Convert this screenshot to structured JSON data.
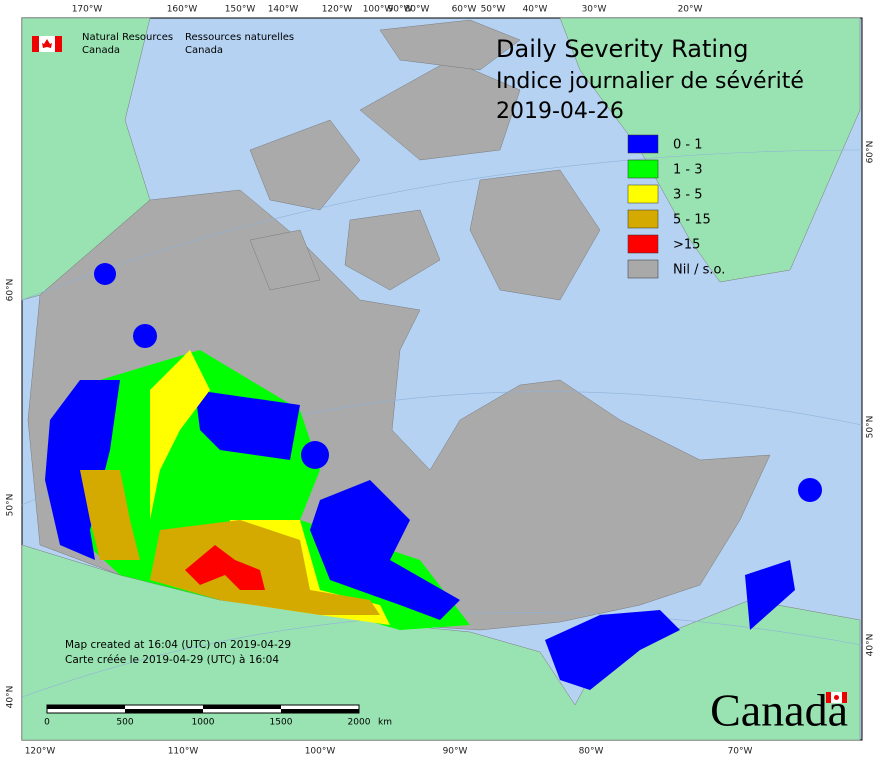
{
  "header": {
    "org_en": [
      "Natural Resources",
      "Canada"
    ],
    "org_fr": [
      "Ressources naturelles",
      "Canada"
    ]
  },
  "title": [
    "Daily Severity Rating",
    "Indice journalier de sévérité",
    "2019-04-26"
  ],
  "legend": [
    {
      "label": "0 - 1",
      "color": "#0000ff"
    },
    {
      "label": "1 - 3",
      "color": "#00ff00"
    },
    {
      "label": "3 - 5",
      "color": "#ffff00"
    },
    {
      "label": "5 - 15",
      "color": "#d4aa00"
    },
    {
      "label": ">15",
      "color": "#ff0000"
    },
    {
      "label": "Nil / s.o.",
      "color": "#a9a9a9"
    }
  ],
  "top_longitudes": [
    "170°W",
    "160°W",
    "150°W",
    "140°W",
    "120°W",
    "100°W",
    "90°W",
    "80°W",
    "60°W",
    "50°W",
    "40°W",
    "30°W",
    "20°W"
  ],
  "bottom_longitudes": [
    "120°W",
    "110°W",
    "100°W",
    "90°W",
    "80°W",
    "70°W"
  ],
  "left_latitudes": [
    "60°N",
    "50°N",
    "40°N"
  ],
  "right_latitudes": [
    "60°N",
    "50°N",
    "40°N"
  ],
  "credits": [
    "Map created at 16:04 (UTC) on 2019-04-29",
    "Carte créée le 2019-04-29 (UTC) à 16:04"
  ],
  "scale_bar": {
    "labels": [
      "0",
      "500",
      "1000",
      "1500",
      "2000"
    ],
    "unit": "km"
  },
  "wordmark": "Canada"
}
